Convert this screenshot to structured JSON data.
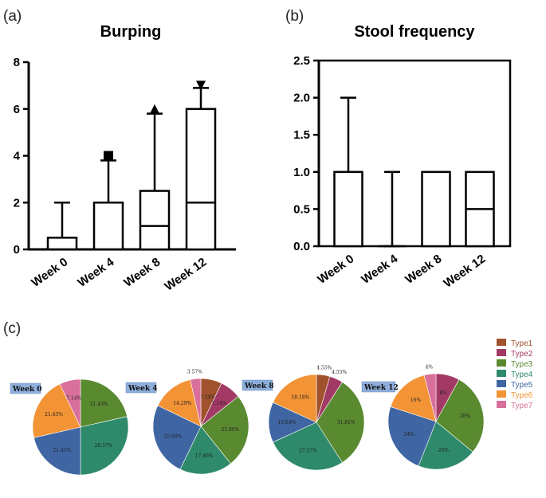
{
  "panel_labels": [
    "(a)",
    "(b)",
    "(c)"
  ],
  "colors": {
    "box_stroke": "#000000",
    "week_label_bg": "#8eaedb",
    "slices": {
      "Type1": "#a0522d",
      "Type2": "#a33a66",
      "Type3": "#5a8a30",
      "Type4": "#2e8a6a",
      "Type5": "#3f65a3",
      "Type6": "#f29335",
      "Type7": "#d9709b"
    }
  },
  "chart_data": [
    {
      "type": "boxplot",
      "title": "Burping",
      "categories": [
        "Week 0",
        "Week 4",
        "Week 8",
        "Week 12"
      ],
      "ylim": [
        0,
        8
      ],
      "yticks": [
        0,
        2,
        4,
        6,
        8
      ],
      "ytick_labels": [
        "0",
        "2",
        "4",
        "6",
        "8"
      ],
      "boxes": [
        {
          "q1": 0,
          "median": 0,
          "q3": 0.5,
          "whisker_low": 0,
          "whisker_high": 2,
          "outlier": null
        },
        {
          "q1": 0,
          "median": 0,
          "q3": 2,
          "whisker_low": 0,
          "whisker_high": 3.8,
          "outlier": {
            "value": 4,
            "marker": "square"
          }
        },
        {
          "q1": 0,
          "median": 1,
          "q3": 2.5,
          "whisker_low": 0,
          "whisker_high": 5.8,
          "outlier": {
            "value": 6,
            "marker": "triangle-up"
          }
        },
        {
          "q1": 0,
          "median": 2,
          "q3": 6,
          "whisker_low": 0,
          "whisker_high": 6.9,
          "outlier": {
            "value": 7,
            "marker": "triangle-down"
          }
        }
      ]
    },
    {
      "type": "boxplot",
      "title": "Stool frequency",
      "categories": [
        "Week 0",
        "Week 4",
        "Week 8",
        "Week 12"
      ],
      "ylim": [
        0,
        2.5
      ],
      "yticks": [
        0,
        0.5,
        1,
        1.5,
        2,
        2.5
      ],
      "ytick_labels": [
        "0.0",
        "0.5",
        "1.0",
        "1.5",
        "2.0",
        "2.5"
      ],
      "framed": true,
      "boxes": [
        {
          "q1": 0,
          "median": 1,
          "q3": 1,
          "whisker_low": 0,
          "whisker_high": 2,
          "outlier": null
        },
        {
          "q1": 0,
          "median": 0,
          "q3": 0,
          "whisker_low": 0,
          "whisker_high": 1,
          "outlier": null
        },
        {
          "q1": 0,
          "median": 1,
          "q3": 1,
          "whisker_low": 0,
          "whisker_high": 1,
          "outlier": null
        },
        {
          "q1": 0,
          "median": 0.5,
          "q3": 1,
          "whisker_low": 0,
          "whisker_high": 1,
          "outlier": null
        }
      ]
    },
    {
      "type": "pie",
      "legend": [
        "Type1",
        "Type2",
        "Type3",
        "Type4",
        "Type5",
        "Type6",
        "Type7"
      ],
      "legend_position": "top-right",
      "pies": [
        {
          "label": "Week 0",
          "slices": [
            {
              "type": "Type3",
              "value": 21.43,
              "text": "21.43%"
            },
            {
              "type": "Type4",
              "value": 28.57,
              "text": "28.57%"
            },
            {
              "type": "Type5",
              "value": 21.43,
              "text": "21.43%"
            },
            {
              "type": "Type6",
              "value": 21.43,
              "text": "21.43%"
            },
            {
              "type": "Type7",
              "value": 7.14,
              "text": "7.14%"
            }
          ]
        },
        {
          "label": "Week 4",
          "slices": [
            {
              "type": "Type1",
              "value": 7.14,
              "text": "7.14%"
            },
            {
              "type": "Type2",
              "value": 7.14,
              "text": "7.14%"
            },
            {
              "type": "Type3",
              "value": 25.0,
              "text": "25.00%"
            },
            {
              "type": "Type4",
              "value": 17.86,
              "text": "17.86%"
            },
            {
              "type": "Type5",
              "value": 25.0,
              "text": "25.00%"
            },
            {
              "type": "Type6",
              "value": 14.29,
              "text": "14.29%"
            },
            {
              "type": "Type7",
              "value": 3.57,
              "text": "3.57%"
            }
          ]
        },
        {
          "label": "Week 8",
          "slices": [
            {
              "type": "Type1",
              "value": 4.55,
              "text": "4.55%"
            },
            {
              "type": "Type2",
              "value": 4.55,
              "text": "4.55%"
            },
            {
              "type": "Type3",
              "value": 31.81,
              "text": "31.81%"
            },
            {
              "type": "Type4",
              "value": 27.27,
              "text": "27.27%"
            },
            {
              "type": "Type5",
              "value": 13.64,
              "text": "13.64%"
            },
            {
              "type": "Type6",
              "value": 18.18,
              "text": "18.18%"
            }
          ]
        },
        {
          "label": "Week 12",
          "slices": [
            {
              "type": "Type2",
              "value": 8,
              "text": "8%"
            },
            {
              "type": "Type3",
              "value": 28,
              "text": "28%"
            },
            {
              "type": "Type4",
              "value": 20,
              "text": "20%"
            },
            {
              "type": "Type5",
              "value": 24,
              "text": "24%"
            },
            {
              "type": "Type6",
              "value": 16,
              "text": "16%"
            },
            {
              "type": "Type7",
              "value": 4,
              "text": "4%"
            }
          ]
        }
      ]
    }
  ]
}
